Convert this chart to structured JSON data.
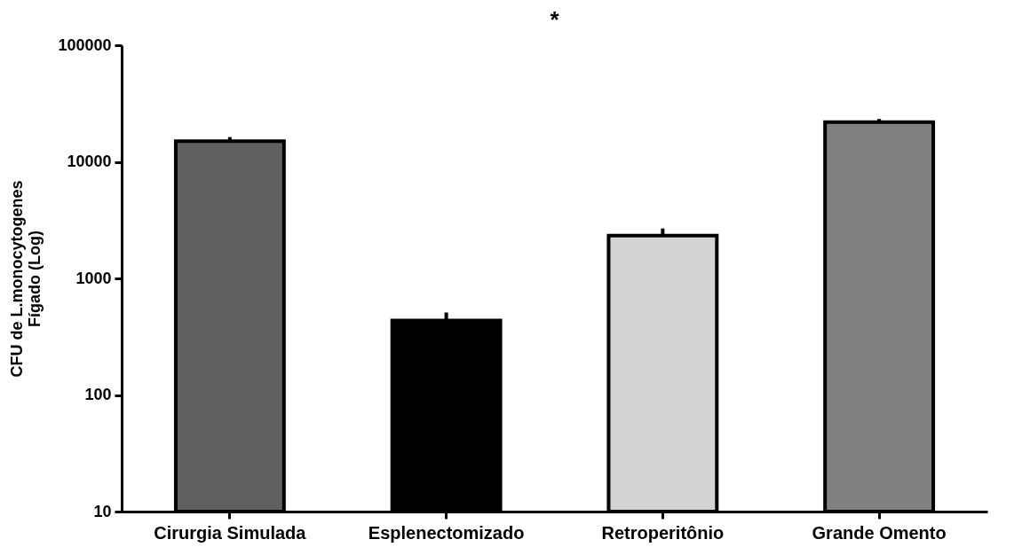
{
  "chart_data": {
    "type": "bar",
    "ylabel": "CFU de L.monocytogenes\nFígado (Log)",
    "annotations": [
      "*"
    ],
    "categories": [
      "Cirurgia Simulada",
      "Esplenectomizado",
      "Retroperitônio",
      "Grande Omento"
    ],
    "values": [
      15000,
      435,
      2330,
      21900
    ],
    "colors": [
      "#606060",
      "#000000",
      "#d3d3d3",
      "#808080"
    ],
    "errors": [
      [
        15000,
        16300
      ],
      [
        435,
        510
      ],
      [
        2330,
        2680
      ],
      [
        21900,
        23300
      ]
    ],
    "log": true,
    "ylim": [
      10,
      100000
    ],
    "yticks": [
      10,
      100,
      1000,
      10000,
      100000
    ],
    "grid": false,
    "legend": false
  }
}
